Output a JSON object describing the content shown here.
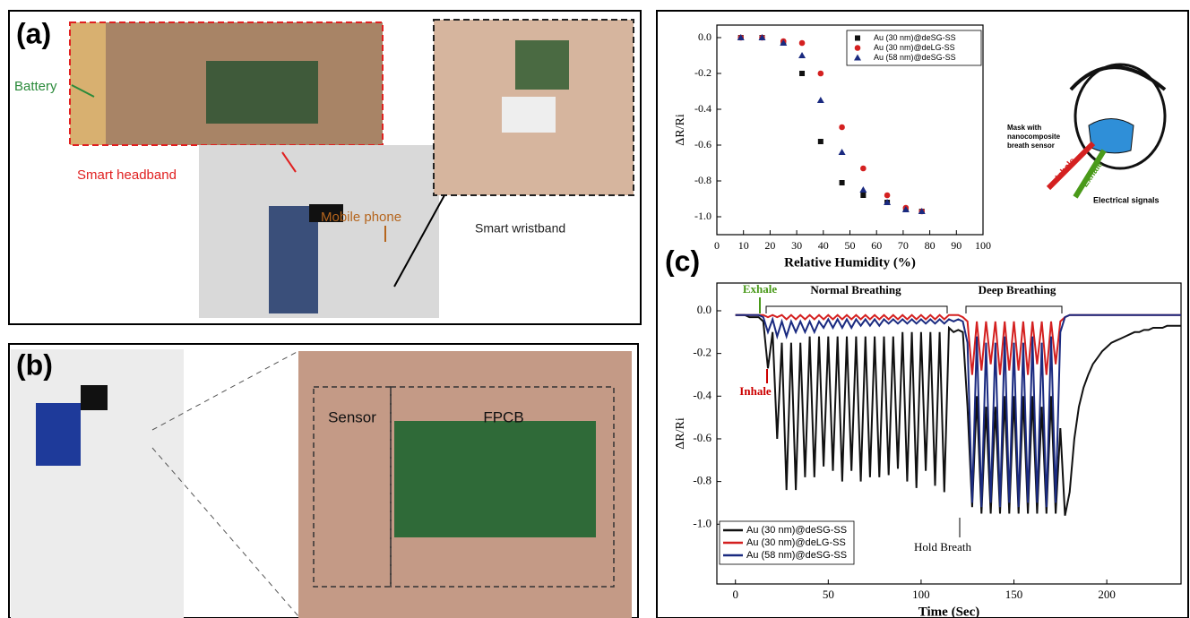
{
  "panels": {
    "a": {
      "label": "(a)",
      "battery": "Battery",
      "headband": "Smart headband",
      "phone": "Mobile phone",
      "wristband": "Smart wristband"
    },
    "b": {
      "label": "(b)",
      "sensor": "Sensor",
      "fpcb": "FPCB"
    },
    "c": {
      "label": "(c)",
      "mask": [
        "Mask with",
        "nanocomposite",
        "breath sensor"
      ],
      "inhale": "Inhale",
      "exhale": "Exhale",
      "signals": "Electrical signals"
    }
  },
  "chart_data": [
    {
      "type": "scatter",
      "xlabel": "Relative Humidity (%)",
      "ylabel": "ΔR/Ri",
      "x": [
        9,
        17,
        25,
        32,
        39,
        47,
        55,
        64,
        71,
        77
      ],
      "series": [
        {
          "name": "Au (30 nm)@deSG-SS",
          "color": "#111111",
          "marker": "square",
          "values": [
            0,
            0,
            -0.03,
            -0.2,
            -0.58,
            -0.81,
            -0.88,
            -0.92,
            -0.96,
            -0.97
          ]
        },
        {
          "name": "Au (30 nm)@deLG-SS",
          "color": "#d42020",
          "marker": "circle",
          "values": [
            0,
            0,
            -0.02,
            -0.03,
            -0.2,
            -0.5,
            -0.73,
            -0.88,
            -0.95,
            -0.97
          ]
        },
        {
          "name": "Au (58 nm)@deSG-SS",
          "color": "#1a2a80",
          "marker": "triangle",
          "values": [
            0,
            0,
            -0.03,
            -0.1,
            -0.35,
            -0.64,
            -0.85,
            -0.92,
            -0.96,
            -0.97
          ]
        }
      ],
      "xlim": [
        0,
        100
      ],
      "ylim": [
        -1.1,
        0.07
      ],
      "xticks": [
        0,
        10,
        20,
        30,
        40,
        50,
        60,
        70,
        80,
        90,
        100
      ],
      "yticks": [
        {
          "value": 0,
          "label": "0.0"
        },
        -0.2,
        -0.4,
        -0.6,
        -0.8,
        {
          "value": -1,
          "label": "-1.0"
        }
      ],
      "legend": "upper right"
    },
    {
      "type": "line",
      "xlabel": "Time (Sec)",
      "ylabel": "ΔR/Ri",
      "annotations": [
        "Exhale",
        "Normal Breathing",
        "Deep Breathing",
        "Inhale",
        "Hold Breath"
      ],
      "x": [
        0,
        2.5,
        5,
        7.5,
        10,
        12.5,
        15,
        17.5,
        20,
        22.5,
        25,
        27.5,
        30,
        32.5,
        35,
        37.5,
        40,
        42.5,
        45,
        47.5,
        50,
        52.5,
        55,
        57.5,
        60,
        62.5,
        65,
        67.5,
        70,
        72.5,
        75,
        77.5,
        80,
        82.5,
        85,
        87.5,
        90,
        92.5,
        95,
        97.5,
        100,
        102.5,
        105,
        107.5,
        110,
        112.5,
        115,
        117.5,
        120,
        122.5,
        125,
        127.5,
        130,
        132.5,
        135,
        137.5,
        140,
        142.5,
        145,
        147.5,
        150,
        152.5,
        155,
        157.5,
        160,
        162.5,
        165,
        167.5,
        170,
        172.5,
        175,
        177.5,
        180,
        182.5,
        185,
        187.5,
        190,
        192.5,
        195,
        197.5,
        200,
        202.5,
        205,
        207.5,
        210,
        212.5,
        215,
        217.5,
        220,
        222.5,
        225,
        227.5,
        230,
        232.5,
        235,
        237.5,
        240
      ],
      "series": [
        {
          "name": "Au (30 nm)@deSG-SS",
          "color": "#111111",
          "values": [
            -0.02,
            -0.02,
            -0.02,
            -0.03,
            -0.03,
            -0.03,
            -0.05,
            -0.27,
            -0.1,
            -0.6,
            -0.15,
            -0.84,
            -0.15,
            -0.84,
            -0.15,
            -0.78,
            -0.12,
            -0.78,
            -0.12,
            -0.73,
            -0.12,
            -0.75,
            -0.12,
            -0.8,
            -0.12,
            -0.75,
            -0.12,
            -0.8,
            -0.12,
            -0.78,
            -0.12,
            -0.78,
            -0.12,
            -0.77,
            -0.12,
            -0.74,
            -0.1,
            -0.8,
            -0.1,
            -0.83,
            -0.1,
            -0.75,
            -0.1,
            -0.82,
            -0.1,
            -0.85,
            -0.08,
            -0.1,
            -0.09,
            -0.1,
            -0.45,
            -0.92,
            -0.4,
            -0.95,
            -0.45,
            -0.95,
            -0.45,
            -0.95,
            -0.4,
            -0.95,
            -0.4,
            -0.95,
            -0.4,
            -0.95,
            -0.4,
            -0.95,
            -0.45,
            -0.95,
            -0.4,
            -0.95,
            -0.55,
            -0.96,
            -0.85,
            -0.6,
            -0.45,
            -0.36,
            -0.3,
            -0.25,
            -0.22,
            -0.19,
            -0.17,
            -0.15,
            -0.14,
            -0.13,
            -0.12,
            -0.11,
            -0.1,
            -0.1,
            -0.09,
            -0.09,
            -0.08,
            -0.08,
            -0.08,
            -0.07,
            -0.07,
            -0.07,
            -0.07
          ]
        },
        {
          "name": "Au (30 nm)@deLG-SS",
          "color": "#d42020",
          "values": [
            -0.02,
            -0.02,
            -0.02,
            -0.02,
            -0.02,
            -0.02,
            -0.02,
            -0.03,
            -0.02,
            -0.03,
            -0.02,
            -0.04,
            -0.02,
            -0.04,
            -0.02,
            -0.04,
            -0.02,
            -0.04,
            -0.02,
            -0.04,
            -0.02,
            -0.04,
            -0.02,
            -0.04,
            -0.02,
            -0.04,
            -0.02,
            -0.04,
            -0.02,
            -0.04,
            -0.02,
            -0.04,
            -0.02,
            -0.04,
            -0.02,
            -0.04,
            -0.02,
            -0.04,
            -0.02,
            -0.04,
            -0.02,
            -0.04,
            -0.02,
            -0.04,
            -0.02,
            -0.04,
            -0.02,
            -0.02,
            -0.02,
            -0.03,
            -0.05,
            -0.3,
            -0.05,
            -0.28,
            -0.05,
            -0.25,
            -0.05,
            -0.3,
            -0.05,
            -0.28,
            -0.05,
            -0.28,
            -0.05,
            -0.3,
            -0.05,
            -0.25,
            -0.05,
            -0.3,
            -0.05,
            -0.25,
            -0.05,
            -0.03,
            -0.02,
            -0.02,
            -0.02,
            -0.02,
            -0.02,
            -0.02,
            -0.02,
            -0.02,
            -0.02,
            -0.02,
            -0.02,
            -0.02,
            -0.02,
            -0.02,
            -0.02,
            -0.02,
            -0.02,
            -0.02,
            -0.02,
            -0.02,
            -0.02,
            -0.02,
            -0.02,
            -0.02,
            -0.02
          ]
        },
        {
          "name": "Au (58 nm)@deSG-SS",
          "color": "#1a2a80",
          "values": [
            -0.02,
            -0.02,
            -0.02,
            -0.02,
            -0.02,
            -0.02,
            -0.03,
            -0.1,
            -0.04,
            -0.12,
            -0.05,
            -0.12,
            -0.05,
            -0.1,
            -0.05,
            -0.1,
            -0.05,
            -0.1,
            -0.05,
            -0.08,
            -0.04,
            -0.08,
            -0.04,
            -0.08,
            -0.04,
            -0.08,
            -0.04,
            -0.07,
            -0.04,
            -0.07,
            -0.04,
            -0.07,
            -0.04,
            -0.06,
            -0.04,
            -0.06,
            -0.04,
            -0.06,
            -0.04,
            -0.06,
            -0.04,
            -0.06,
            -0.04,
            -0.06,
            -0.04,
            -0.06,
            -0.04,
            -0.05,
            -0.04,
            -0.05,
            -0.15,
            -0.9,
            -0.12,
            -0.92,
            -0.15,
            -0.9,
            -0.15,
            -0.92,
            -0.12,
            -0.9,
            -0.15,
            -0.92,
            -0.15,
            -0.9,
            -0.12,
            -0.9,
            -0.15,
            -0.92,
            -0.12,
            -0.9,
            -0.1,
            -0.03,
            -0.02,
            -0.02,
            -0.02,
            -0.02,
            -0.02,
            -0.02,
            -0.02,
            -0.02,
            -0.02,
            -0.02,
            -0.02,
            -0.02,
            -0.02,
            -0.02,
            -0.02,
            -0.02,
            -0.02,
            -0.02,
            -0.02,
            -0.02,
            -0.02,
            -0.02,
            -0.02,
            -0.02,
            -0.02
          ]
        }
      ],
      "xlim": [
        -10,
        240
      ],
      "ylim": [
        -1.28,
        0.13
      ],
      "xticks": [
        0,
        50,
        100,
        150,
        200
      ],
      "yticks": [
        {
          "value": 0,
          "label": "0.0"
        },
        -0.2,
        -0.4,
        -0.6,
        -0.8,
        {
          "value": -1,
          "label": "-1.0"
        }
      ],
      "legend": "lower left"
    }
  ]
}
